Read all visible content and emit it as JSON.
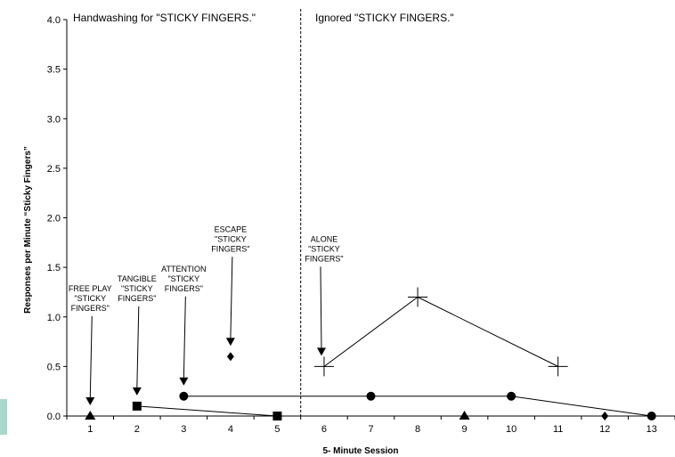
{
  "chart_data": {
    "type": "scatter",
    "title": "",
    "xlabel": "5- Minute Session",
    "ylabel": "Responses per Minute “Sticky Fingers”",
    "xlim": [
      0.5,
      13.5
    ],
    "ylim": [
      0,
      4.0
    ],
    "x_ticks": [
      1,
      2,
      3,
      4,
      5,
      6,
      7,
      8,
      9,
      10,
      11,
      12,
      13
    ],
    "y_ticks": [
      "0.0",
      "0.5",
      "1.0",
      "1.5",
      "2.0",
      "2.5",
      "3.0",
      "3.5",
      "4.0"
    ],
    "phase_change_after_session": 5.5,
    "phases": [
      {
        "label": "Handwashing for  \"STICKY FINGERS.\""
      },
      {
        "label": "Ignored \"STICKY FINGERS.\""
      }
    ],
    "series": [
      {
        "marker": "triangle",
        "connect_points": false,
        "points": [
          [
            1,
            0.0
          ],
          [
            9,
            0.0
          ]
        ]
      },
      {
        "marker": "square",
        "connect_points": true,
        "points": [
          [
            2,
            0.1
          ],
          [
            5,
            0.0
          ]
        ]
      },
      {
        "marker": "circle",
        "connect_points": true,
        "points": [
          [
            3,
            0.2
          ],
          [
            7,
            0.2
          ],
          [
            10,
            0.2
          ],
          [
            13,
            0.0
          ]
        ]
      },
      {
        "marker": "diamond",
        "connect_points": false,
        "points": [
          [
            4,
            0.6
          ],
          [
            12,
            0.0
          ]
        ]
      },
      {
        "marker": "plus",
        "connect_points": true,
        "points": [
          [
            6,
            0.5
          ],
          [
            8,
            1.2
          ],
          [
            11,
            0.5
          ]
        ]
      }
    ],
    "annotations": [
      {
        "lines": [
          "FREE PLAY",
          "\"STICKY",
          "FINGERS\""
        ],
        "session": 1
      },
      {
        "lines": [
          "TANGIBLE",
          "\"STICKY",
          "FINGERS\""
        ],
        "session": 2
      },
      {
        "lines": [
          "ATTENTION",
          "\"STICKY",
          "FINGERS\""
        ],
        "session": 3
      },
      {
        "lines": [
          "ESCAPE",
          "\"STICKY",
          "FINGERS\""
        ],
        "session": 4
      },
      {
        "lines": [
          "ALONE",
          "\"STICKY",
          "FINGERS\""
        ],
        "session": 6
      }
    ]
  }
}
